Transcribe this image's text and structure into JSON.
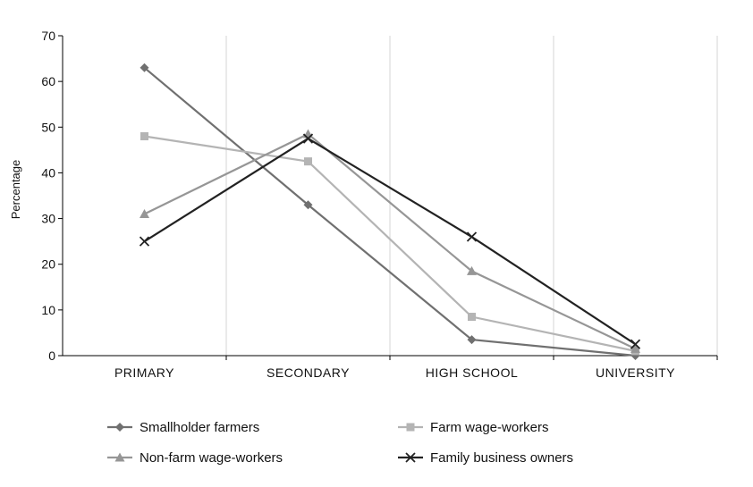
{
  "chart_data": {
    "type": "line",
    "title": "",
    "xlabel": "",
    "ylabel": "Percentage",
    "ylim": [
      0,
      70
    ],
    "yticks": [
      0,
      10,
      20,
      30,
      40,
      50,
      60,
      70
    ],
    "categories": [
      "PRIMARY",
      "SECONDARY",
      "HIGH SCHOOL",
      "UNIVERSITY"
    ],
    "grid": "vertical",
    "legend_position": "bottom",
    "series": [
      {
        "name": "Smallholder farmers",
        "values": [
          63,
          33,
          3.5,
          0
        ],
        "color": "#707070",
        "marker": "diamond"
      },
      {
        "name": "Farm wage-workers",
        "values": [
          48,
          42.5,
          8.5,
          1
        ],
        "color": "#b4b4b4",
        "marker": "square"
      },
      {
        "name": "Non-farm wage-workers",
        "values": [
          31,
          48.5,
          18.5,
          1.5
        ],
        "color": "#969696",
        "marker": "triangle"
      },
      {
        "name": "Family business owners",
        "values": [
          25,
          47.5,
          26,
          2.5
        ],
        "color": "#222222",
        "marker": "x"
      }
    ]
  }
}
